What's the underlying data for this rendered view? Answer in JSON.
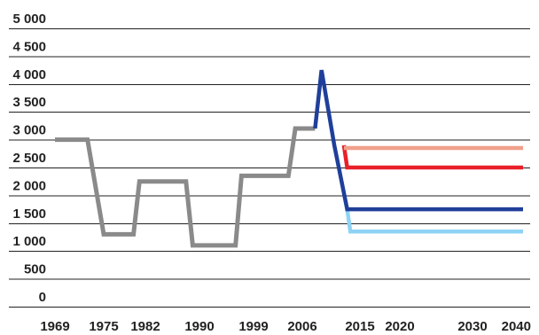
{
  "chart_data": {
    "type": "line",
    "title": "",
    "xlabel": "",
    "ylabel": "",
    "ylim": [
      0,
      5000
    ],
    "grid": true,
    "legend": "none",
    "y_ticks": [
      {
        "value": 0,
        "label": "0"
      },
      {
        "value": 500,
        "label": "500"
      },
      {
        "value": 1000,
        "label": "1 000"
      },
      {
        "value": 1500,
        "label": "1 500"
      },
      {
        "value": 2000,
        "label": "2 000"
      },
      {
        "value": 2500,
        "label": "2 500"
      },
      {
        "value": 3000,
        "label": "3 000"
      },
      {
        "value": 3500,
        "label": "3 500"
      },
      {
        "value": 4000,
        "label": "4 000"
      },
      {
        "value": 4500,
        "label": "4 500"
      },
      {
        "value": 5000,
        "label": "5 000"
      }
    ],
    "x_ticks": [
      "1969",
      "1975",
      "1982",
      "1990",
      "1999",
      "2006",
      "2015",
      "2020",
      "2030",
      "2040"
    ],
    "series": [
      {
        "color": "#8a8a8a",
        "points": [
          [
            "1969",
            3000
          ],
          [
            "1973",
            3000
          ],
          [
            "1975",
            1300
          ],
          [
            "1980",
            1300
          ],
          [
            "1981",
            2250
          ],
          [
            "1988",
            2250
          ],
          [
            "1989",
            1100
          ],
          [
            "1996",
            1100
          ],
          [
            "1997",
            2350
          ],
          [
            "2004",
            2350
          ],
          [
            "2005",
            3200
          ],
          [
            "2008",
            3200
          ]
        ]
      },
      {
        "color": "#1f3f9a",
        "points": [
          [
            "2008",
            3200
          ],
          [
            "2009",
            4250
          ],
          [
            "2011",
            2900
          ],
          [
            "2013",
            1750
          ],
          [
            "2040",
            1750
          ]
        ]
      },
      {
        "color": "#8fd3f4",
        "points": [
          [
            "2013",
            1750
          ],
          [
            "2013.5",
            1350
          ],
          [
            "2040",
            1350
          ]
        ]
      },
      {
        "color": "#e8202a",
        "points": [
          [
            "2012.5",
            2900
          ],
          [
            "2013",
            2500
          ],
          [
            "2040",
            2500
          ]
        ]
      },
      {
        "color": "#f0a08a",
        "points": [
          [
            "2012.5",
            2850
          ],
          [
            "2040",
            2850
          ]
        ]
      }
    ]
  }
}
